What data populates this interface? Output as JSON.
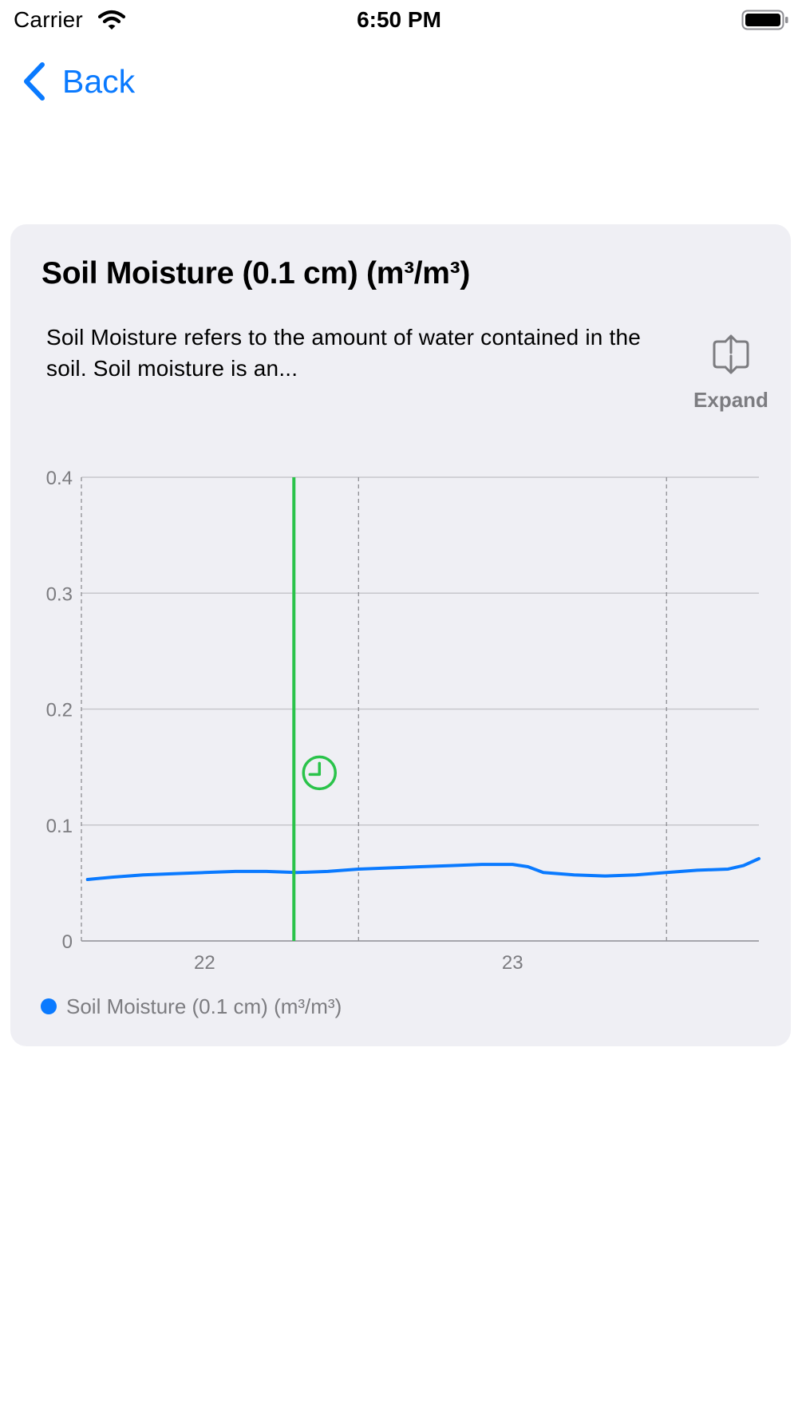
{
  "status_bar": {
    "carrier": "Carrier",
    "time": "6:50 PM",
    "wifi_icon": "wifi-icon",
    "battery_icon": "battery-icon"
  },
  "nav": {
    "back_label": "Back",
    "back_icon": "chevron-left-icon"
  },
  "card": {
    "title": "Soil Moisture (0.1 cm) (m³/m³)",
    "description": "Soil Moisture refers to the amount of water contained in the soil. Soil moisture is an...",
    "expand_label": "Expand",
    "expand_icon": "expand-icon"
  },
  "colors": {
    "accent": "#0a7aff",
    "line": "#0a7aff",
    "cursor": "#2ac34a",
    "card_background": "#efeff4",
    "secondary_text": "#7c7c80"
  },
  "chart_data": {
    "type": "line",
    "x_tick_labels": [
      "22",
      "23"
    ],
    "y_tick_labels": [
      "0",
      "0.1",
      "0.2",
      "0.3",
      "0.4"
    ],
    "ylim": [
      0,
      0.4
    ],
    "xlim": [
      21.6,
      23.8
    ],
    "grid": true,
    "legend_placement": "bottom-left",
    "cursor_x": 22.29,
    "cursor_icon": "clock-icon",
    "series": [
      {
        "name": "Soil Moisture (0.1 cm) (m³/m³)",
        "x": [
          21.62,
          21.7,
          21.8,
          21.9,
          22.0,
          22.1,
          22.2,
          22.3,
          22.4,
          22.5,
          22.6,
          22.7,
          22.8,
          22.9,
          23.0,
          23.05,
          23.1,
          23.2,
          23.3,
          23.4,
          23.5,
          23.6,
          23.7,
          23.75,
          23.8
        ],
        "values": [
          0.053,
          0.055,
          0.057,
          0.058,
          0.059,
          0.06,
          0.06,
          0.059,
          0.06,
          0.062,
          0.063,
          0.064,
          0.065,
          0.066,
          0.066,
          0.064,
          0.059,
          0.057,
          0.056,
          0.057,
          0.059,
          0.061,
          0.062,
          0.065,
          0.071
        ]
      }
    ]
  }
}
